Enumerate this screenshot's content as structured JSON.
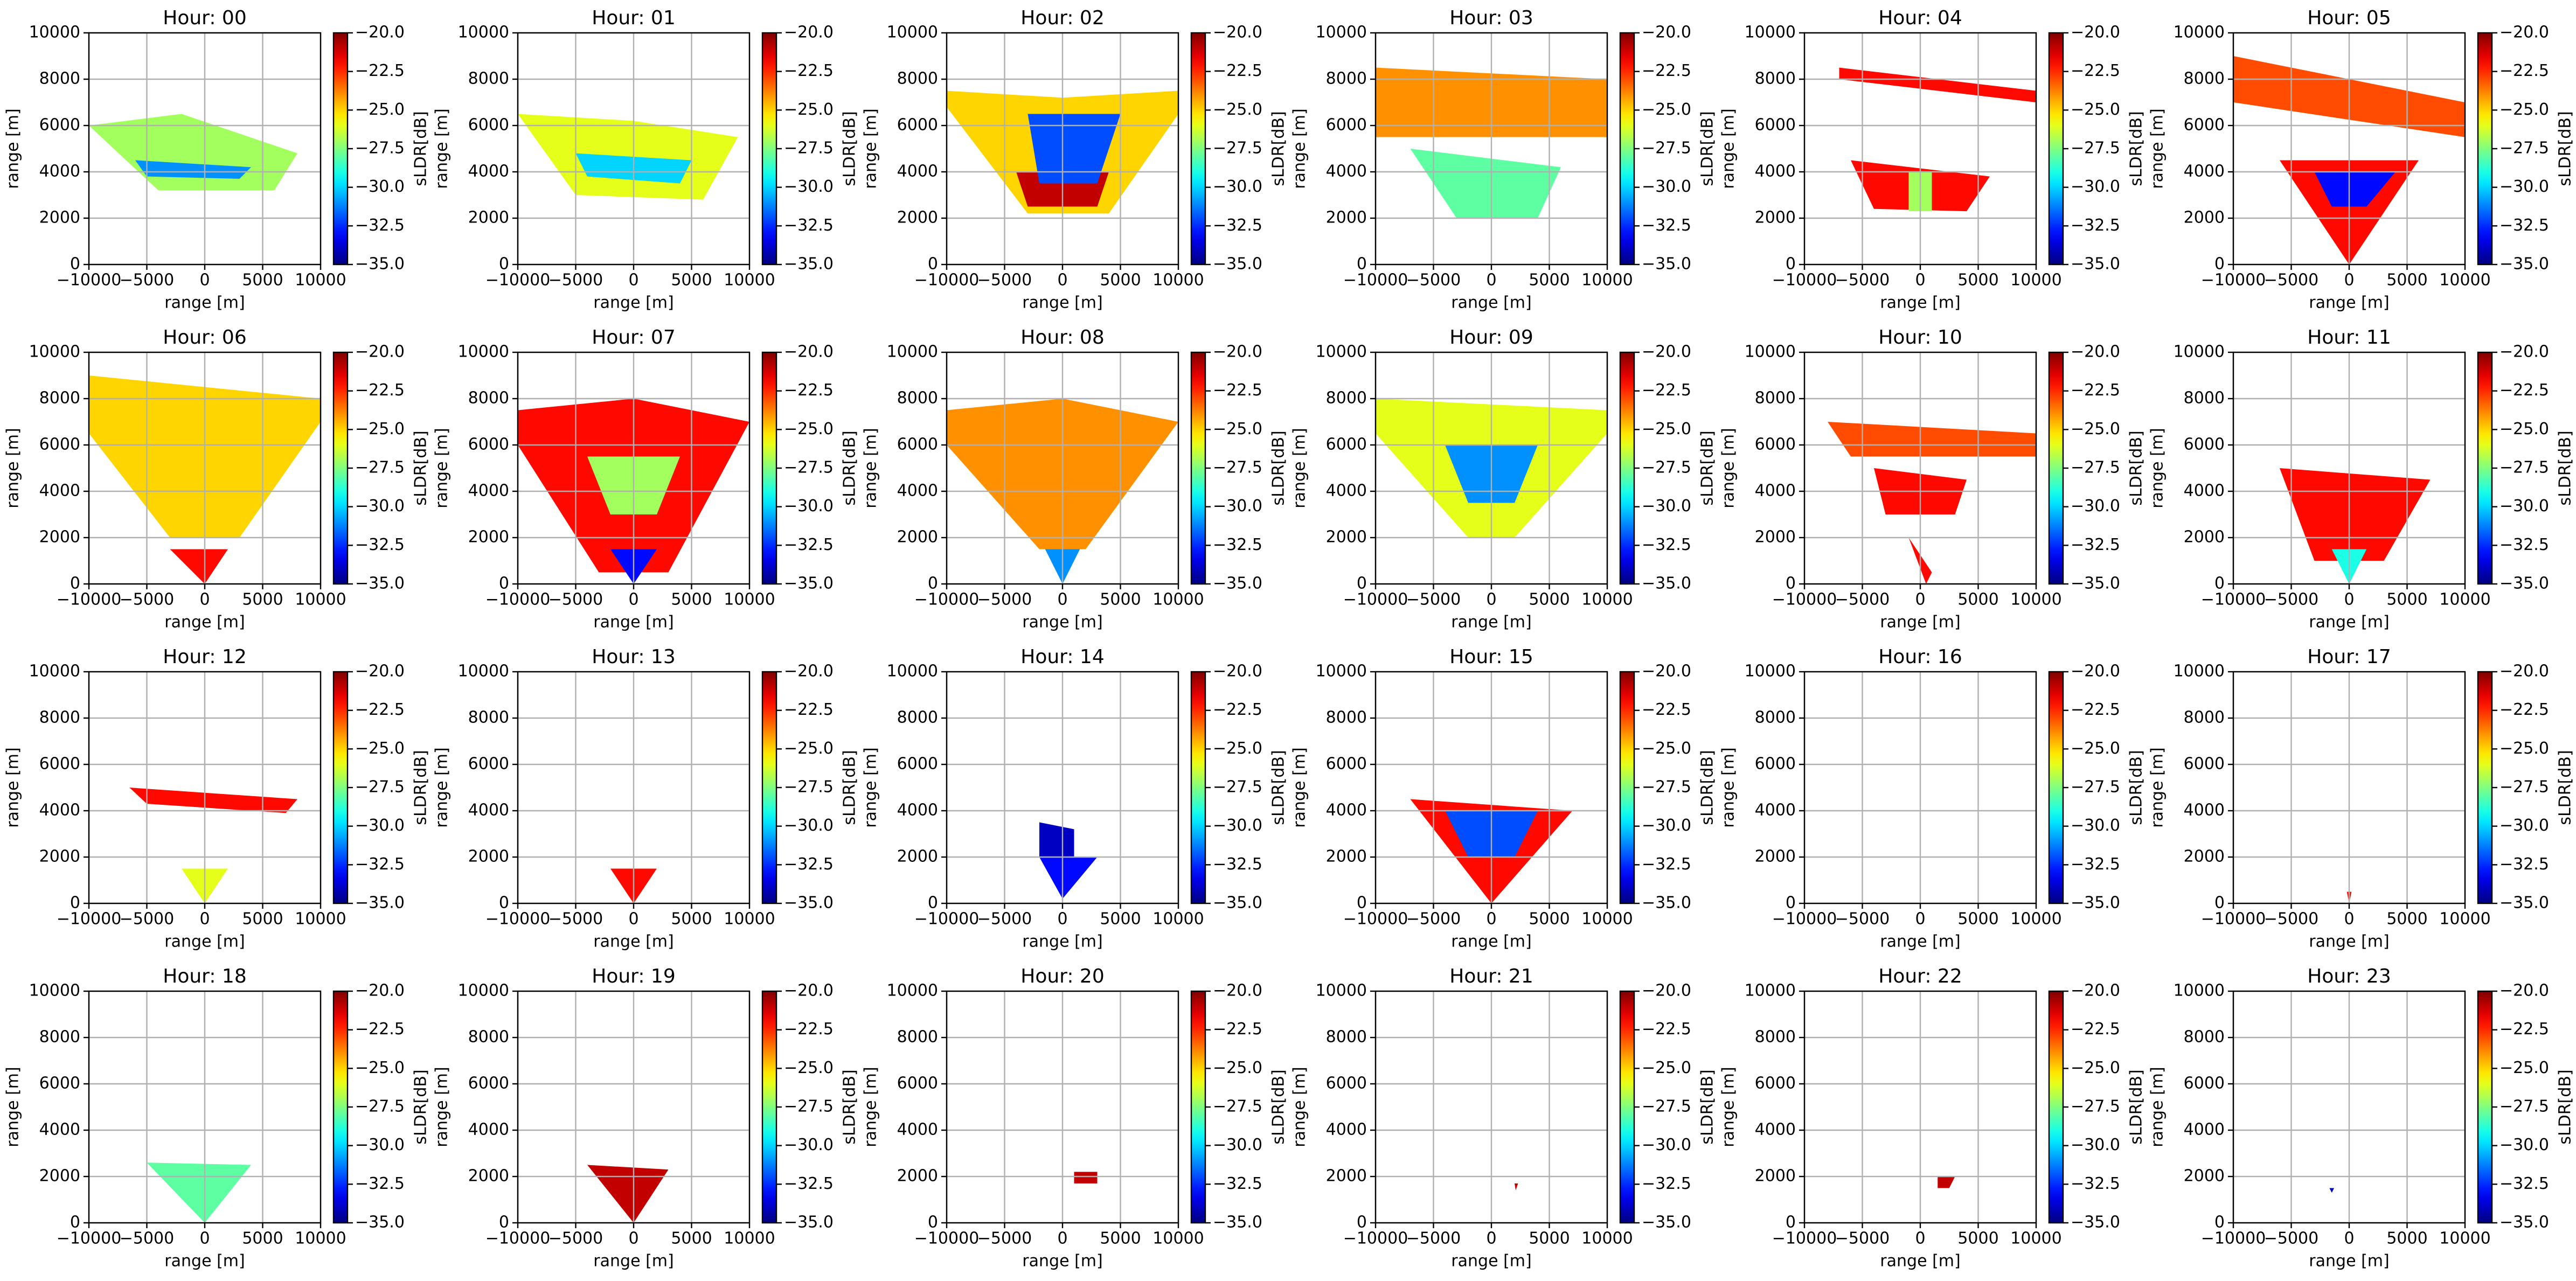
{
  "axes": {
    "xlabel": "range [m]",
    "ylabel": "range [m]",
    "xlim": [
      -10000,
      10000
    ],
    "xticks": [
      {
        "value": -10000,
        "label": "−10000"
      },
      {
        "value": -5000,
        "label": "−5000"
      },
      0,
      5000,
      10000
    ],
    "ylim": [
      0,
      10000
    ],
    "yticks": [
      0,
      2000,
      4000,
      6000,
      8000,
      10000
    ],
    "grid": true,
    "colorbar": {
      "label": "sLDR[dB]",
      "colormap": "jet",
      "clim": [
        -35,
        -20
      ],
      "ticks": [
        {
          "value": -35,
          "label": "−35.0"
        },
        {
          "value": -32.5,
          "label": "−32.5"
        },
        {
          "value": -30,
          "label": "−30.0"
        },
        {
          "value": -27.5,
          "label": "−27.5"
        },
        {
          "value": -25,
          "label": "−25.0"
        },
        {
          "value": -22.5,
          "label": "−22.5"
        },
        {
          "value": -20,
          "label": "−20.0"
        }
      ]
    }
  },
  "chart_data": [
    {
      "type": "radar_field",
      "title": "Hour: 00",
      "regions": [
        {
          "x": [
            -10000,
            -2000,
            8000,
            6000,
            -4000
          ],
          "y": [
            6000,
            6500,
            4800,
            3200,
            3200
          ],
          "value": -27
        },
        {
          "x": [
            -6000,
            4000,
            3000,
            -5000
          ],
          "y": [
            4500,
            4200,
            3700,
            3800
          ],
          "value": -31
        }
      ]
    },
    {
      "type": "radar_field",
      "title": "Hour: 01",
      "regions": [
        {
          "x": [
            -10000,
            0,
            9000,
            6000,
            -5000
          ],
          "y": [
            6500,
            6200,
            5500,
            2800,
            3000
          ],
          "value": -26
        },
        {
          "x": [
            -5000,
            5000,
            4000,
            -4000
          ],
          "y": [
            4800,
            4500,
            3500,
            3800
          ],
          "value": -30
        }
      ]
    },
    {
      "type": "radar_field",
      "title": "Hour: 02",
      "regions": [
        {
          "x": [
            -10000,
            0,
            10000,
            10000,
            4000,
            -3000,
            -10000
          ],
          "y": [
            7500,
            7200,
            7500,
            6500,
            2200,
            2200,
            6800
          ],
          "value": -25
        },
        {
          "x": [
            -4000,
            4000,
            3000,
            -3000
          ],
          "y": [
            4000,
            4000,
            2500,
            2500
          ],
          "value": -21
        },
        {
          "x": [
            -3000,
            5000,
            3000,
            -2000
          ],
          "y": [
            6500,
            6500,
            3500,
            3500
          ],
          "value": -32
        }
      ]
    },
    {
      "type": "radar_field",
      "title": "Hour: 03",
      "regions": [
        {
          "x": [
            -10000,
            10000,
            10000,
            -10000
          ],
          "y": [
            8500,
            8000,
            5500,
            5500
          ],
          "value": -24
        },
        {
          "x": [
            -7000,
            6000,
            4000,
            -3000
          ],
          "y": [
            5000,
            4200,
            2000,
            2000
          ],
          "value": -28
        }
      ]
    },
    {
      "type": "radar_field",
      "title": "Hour: 04",
      "regions": [
        {
          "x": [
            -7000,
            10000,
            10000,
            -7000
          ],
          "y": [
            8500,
            7500,
            7000,
            8000
          ],
          "value": -22
        },
        {
          "x": [
            -6000,
            6000,
            4000,
            -4000
          ],
          "y": [
            4500,
            3800,
            2300,
            2400
          ],
          "value": -22
        },
        {
          "x": [
            -1000,
            1000,
            1000,
            -1000
          ],
          "y": [
            4000,
            4000,
            2300,
            2300
          ],
          "value": -27
        }
      ]
    },
    {
      "type": "radar_field",
      "title": "Hour: 05",
      "regions": [
        {
          "x": [
            -10000,
            10000,
            10000,
            -10000
          ],
          "y": [
            9000,
            7000,
            5500,
            7000
          ],
          "value": -23
        },
        {
          "x": [
            -6000,
            6000,
            0
          ],
          "y": [
            4500,
            4500,
            0
          ],
          "value": -22
        },
        {
          "x": [
            -3000,
            4000,
            1500,
            -1500
          ],
          "y": [
            4000,
            4000,
            2500,
            2500
          ],
          "value": -33
        }
      ]
    },
    {
      "type": "radar_field",
      "title": "Hour: 06",
      "regions": [
        {
          "x": [
            -10000,
            10000,
            10000,
            3000,
            -3000,
            -10000
          ],
          "y": [
            9000,
            8000,
            7000,
            2000,
            2000,
            6500
          ],
          "value": -25
        },
        {
          "x": [
            -3000,
            2000,
            0
          ],
          "y": [
            1500,
            1500,
            0
          ],
          "value": -22
        }
      ]
    },
    {
      "type": "radar_field",
      "title": "Hour: 07",
      "regions": [
        {
          "x": [
            -10000,
            0,
            10000,
            3000,
            -3000,
            -10000
          ],
          "y": [
            7500,
            8000,
            7000,
            500,
            500,
            6000
          ],
          "value": -22
        },
        {
          "x": [
            -2000,
            2000,
            0
          ],
          "y": [
            1500,
            1500,
            0
          ],
          "value": -33
        },
        {
          "x": [
            -4000,
            4000,
            2000,
            -2000
          ],
          "y": [
            5500,
            5500,
            3000,
            3000
          ],
          "value": -27
        }
      ]
    },
    {
      "type": "radar_field",
      "title": "Hour: 08",
      "regions": [
        {
          "x": [
            -10000,
            0,
            10000,
            2000,
            -2000,
            -10000
          ],
          "y": [
            7500,
            8000,
            7000,
            1500,
            1500,
            6000
          ],
          "value": -24
        },
        {
          "x": [
            -1500,
            1500,
            0
          ],
          "y": [
            1500,
            1500,
            0
          ],
          "value": -31
        }
      ]
    },
    {
      "type": "radar_field",
      "title": "Hour: 09",
      "regions": [
        {
          "x": [
            -10000,
            10000,
            10000,
            2000,
            -2000,
            -10000
          ],
          "y": [
            8000,
            7500,
            6500,
            2000,
            2000,
            6500
          ],
          "value": -26
        },
        {
          "x": [
            -4000,
            4000,
            2000,
            -2000
          ],
          "y": [
            6000,
            6000,
            3500,
            3500
          ],
          "value": -31
        }
      ]
    },
    {
      "type": "radar_field",
      "title": "Hour: 10",
      "regions": [
        {
          "x": [
            -8000,
            10000,
            10000,
            -6000
          ],
          "y": [
            7000,
            6500,
            5500,
            5500
          ],
          "value": -23
        },
        {
          "x": [
            -4000,
            4000,
            3000,
            -3000
          ],
          "y": [
            5000,
            4500,
            3000,
            3000
          ],
          "value": -22
        },
        {
          "x": [
            -1000,
            1000,
            500
          ],
          "y": [
            2000,
            500,
            0
          ],
          "value": -22
        }
      ]
    },
    {
      "type": "radar_field",
      "title": "Hour: 11",
      "regions": [
        {
          "x": [
            -6000,
            7000,
            3000,
            -3000
          ],
          "y": [
            5000,
            4500,
            1000,
            1000
          ],
          "value": -22
        },
        {
          "x": [
            -1500,
            1500,
            0
          ],
          "y": [
            1500,
            1500,
            0
          ],
          "value": -29
        }
      ]
    },
    {
      "type": "radar_field",
      "title": "Hour: 12",
      "regions": [
        {
          "x": [
            -6500,
            8000,
            7000,
            -5000
          ],
          "y": [
            5000,
            4500,
            3900,
            4300
          ],
          "value": -22
        },
        {
          "x": [
            -2000,
            2000,
            0
          ],
          "y": [
            1500,
            1500,
            0
          ],
          "value": -26
        }
      ]
    },
    {
      "type": "radar_field",
      "title": "Hour: 13",
      "regions": [
        {
          "x": [
            -2000,
            2000,
            0
          ],
          "y": [
            1500,
            1500,
            0
          ],
          "value": -22
        }
      ]
    },
    {
      "type": "radar_field",
      "title": "Hour: 14",
      "regions": [
        {
          "x": [
            -2000,
            1000,
            1000,
            -2000
          ],
          "y": [
            3500,
            3200,
            2000,
            2000
          ],
          "value": -34
        },
        {
          "x": [
            -2000,
            3000,
            0
          ],
          "y": [
            2000,
            2000,
            200
          ],
          "value": -33
        }
      ]
    },
    {
      "type": "radar_field",
      "title": "Hour: 15",
      "regions": [
        {
          "x": [
            -7000,
            7000,
            0
          ],
          "y": [
            4500,
            4000,
            0
          ],
          "value": -22
        },
        {
          "x": [
            -4000,
            4000,
            2000,
            -2000
          ],
          "y": [
            4000,
            4000,
            2000,
            2000
          ],
          "value": -32
        }
      ]
    },
    {
      "type": "radar_field",
      "title": "Hour: 16",
      "regions": []
    },
    {
      "type": "radar_field",
      "title": "Hour: 17",
      "regions": [
        {
          "x": [
            -200,
            200,
            0
          ],
          "y": [
            500,
            500,
            0
          ],
          "value": -22
        }
      ]
    },
    {
      "type": "radar_field",
      "title": "Hour: 18",
      "regions": [
        {
          "x": [
            -5000,
            4000,
            0
          ],
          "y": [
            2600,
            2500,
            0
          ],
          "value": -28
        }
      ]
    },
    {
      "type": "radar_field",
      "title": "Hour: 19",
      "regions": [
        {
          "x": [
            -4000,
            3000,
            0
          ],
          "y": [
            2500,
            2300,
            0
          ],
          "value": -21
        }
      ]
    },
    {
      "type": "radar_field",
      "title": "Hour: 20",
      "regions": [
        {
          "x": [
            1000,
            3000,
            3000,
            1000
          ],
          "y": [
            2200,
            2200,
            1700,
            1700
          ],
          "value": -21
        }
      ]
    },
    {
      "type": "radar_field",
      "title": "Hour: 21",
      "regions": [
        {
          "x": [
            2000,
            2300,
            2100
          ],
          "y": [
            1700,
            1700,
            1400
          ],
          "value": -21
        }
      ]
    },
    {
      "type": "radar_field",
      "title": "Hour: 22",
      "regions": [
        {
          "x": [
            1500,
            3000,
            2500,
            1500
          ],
          "y": [
            2000,
            2000,
            1500,
            1500
          ],
          "value": -21
        }
      ]
    },
    {
      "type": "radar_field",
      "title": "Hour: 23",
      "regions": [
        {
          "x": [
            -1700,
            -1300,
            -1500
          ],
          "y": [
            1500,
            1500,
            1300
          ],
          "value": -34
        }
      ]
    }
  ]
}
